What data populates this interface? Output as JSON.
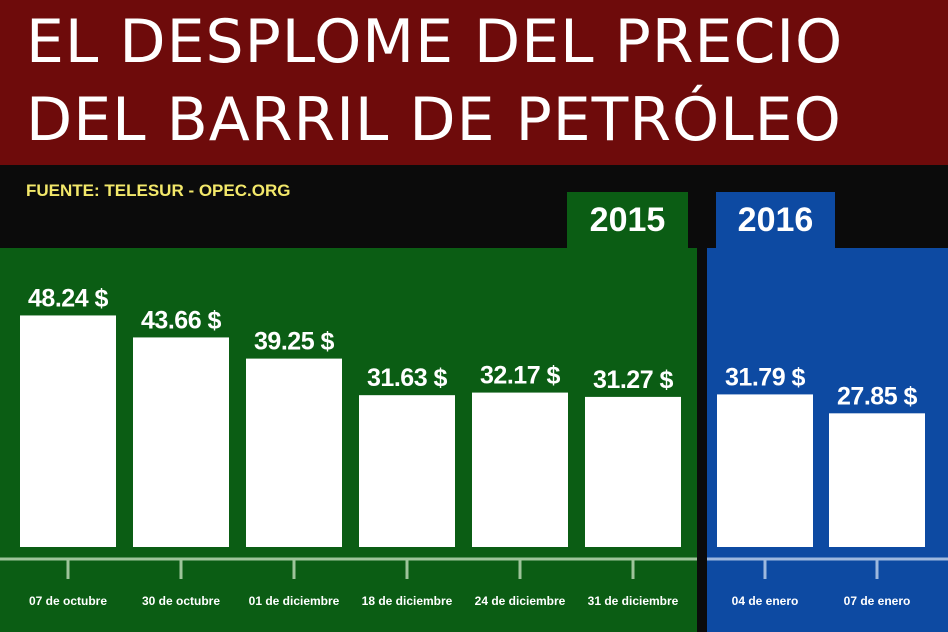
{
  "title": {
    "line1": "EL DESPLOME DEL PRECIO",
    "line2": "DEL BARRIL DE PETRÓLEO"
  },
  "source": "FUENTE: TELESUR - OPEC.ORG",
  "colors": {
    "title_bg": "#6e0b0b",
    "panel_2015": "#0b5d14",
    "panel_2016": "#0d4aa2",
    "background": "#0b0b0b",
    "bar": "#ffffff",
    "axis": "#9ec49a",
    "axis_2016": "#9db8de",
    "source_text": "#f3e86a"
  },
  "chart_data": {
    "type": "bar",
    "title": "EL DESPLOME DEL PRECIO DEL BARRIL DE PETRÓLEO",
    "xlabel": "",
    "ylabel": "",
    "grid": false,
    "groups": [
      {
        "label": "2015",
        "categories": [
          "07 de octubre",
          "30 de octubre",
          "01 de diciembre",
          "18 de diciembre",
          "24 de diciembre",
          "31 de diciembre"
        ],
        "values": [
          48.24,
          43.66,
          39.25,
          31.63,
          32.17,
          31.27
        ],
        "value_labels": [
          "48.24 $",
          "43.66 $",
          "39.25 $",
          "31.63 $",
          "32.17 $",
          "31.27 $"
        ]
      },
      {
        "label": "2016",
        "categories": [
          "04 de enero",
          "07 de enero"
        ],
        "values": [
          31.79,
          27.85
        ],
        "value_labels": [
          "31.79 $",
          "27.85 $"
        ]
      }
    ]
  }
}
